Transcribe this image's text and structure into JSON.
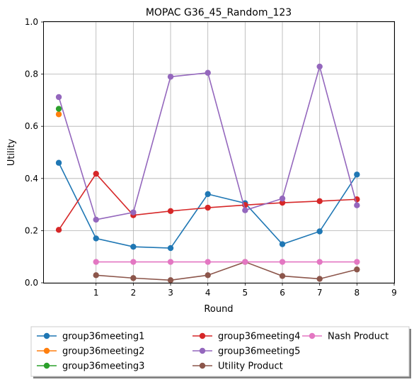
{
  "chart_data": {
    "type": "line",
    "title": "MOPAC G36_45_Random_123",
    "xlabel": "Round",
    "ylabel": "Utility",
    "xlim": [
      -0.4,
      9
    ],
    "ylim": [
      0,
      1.0
    ],
    "xticks": [
      1,
      2,
      3,
      4,
      5,
      6,
      7,
      8,
      9
    ],
    "yticks": [
      0.0,
      0.2,
      0.4,
      0.6,
      0.8,
      1.0
    ],
    "grid": true,
    "legend_position": "bottom-outside",
    "series": [
      {
        "name": "group36meeting1",
        "color": "#1f77b4",
        "x": [
          0,
          1,
          2,
          3,
          4,
          5,
          6,
          7,
          8
        ],
        "y": [
          0.46,
          0.17,
          0.138,
          0.133,
          0.34,
          0.305,
          0.148,
          0.197,
          0.415
        ]
      },
      {
        "name": "group36meeting2",
        "color": "#ff7f0e",
        "x": [
          0
        ],
        "y": [
          0.646
        ]
      },
      {
        "name": "group36meeting3",
        "color": "#2ca02c",
        "x": [
          0
        ],
        "y": [
          0.667
        ]
      },
      {
        "name": "group36meeting4",
        "color": "#d62728",
        "x": [
          0,
          1,
          2,
          3,
          4,
          5,
          6,
          7,
          8
        ],
        "y": [
          0.203,
          0.418,
          0.259,
          0.275,
          0.288,
          0.298,
          0.307,
          0.313,
          0.32
        ]
      },
      {
        "name": "group36meeting5",
        "color": "#9467bd",
        "x": [
          0,
          1,
          2,
          3,
          4,
          5,
          6,
          7,
          8
        ],
        "y": [
          0.712,
          0.242,
          0.27,
          0.79,
          0.805,
          0.278,
          0.323,
          0.829,
          0.297
        ]
      },
      {
        "name": "Utility Product",
        "color": "#8c564b",
        "x": [
          1,
          2,
          3,
          4,
          5,
          6,
          7,
          8
        ],
        "y": [
          0.029,
          0.018,
          0.01,
          0.029,
          0.08,
          0.026,
          0.015,
          0.051
        ]
      },
      {
        "name": "Nash Product",
        "color": "#e377c2",
        "x": [
          1,
          2,
          3,
          4,
          5,
          6,
          7,
          8
        ],
        "y": [
          0.08,
          0.08,
          0.08,
          0.08,
          0.08,
          0.08,
          0.08,
          0.08
        ]
      }
    ]
  }
}
